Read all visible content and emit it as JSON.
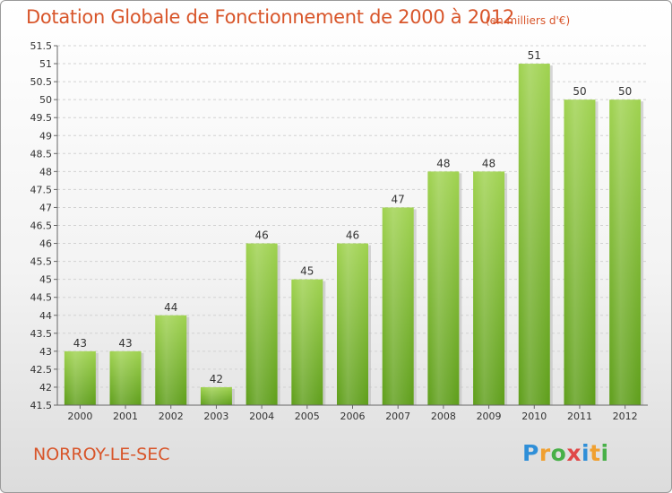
{
  "chart_data": {
    "type": "bar",
    "title": "Dotation Globale de Fonctionnement de 2000 à 2012",
    "subtitle": "(en milliers d'€)",
    "categories": [
      "2000",
      "2001",
      "2002",
      "2003",
      "2004",
      "2005",
      "2006",
      "2007",
      "2008",
      "2009",
      "2010",
      "2011",
      "2012"
    ],
    "values": [
      43,
      43,
      44,
      42,
      46,
      45,
      46,
      47,
      48,
      48,
      51,
      50,
      50
    ],
    "ylim": [
      41.5,
      51.5
    ],
    "yticks": [
      "41.5",
      "42",
      "42.5",
      "43",
      "43.5",
      "44",
      "44.5",
      "45",
      "45.5",
      "46",
      "46.5",
      "47",
      "47.5",
      "48",
      "48.5",
      "49",
      "49.5",
      "50",
      "50.5",
      "51",
      "51.5"
    ],
    "grid": true,
    "bar_color": "#7cb82f",
    "xlabel": "",
    "ylabel": ""
  },
  "commune": "NORROY-LE-SEC",
  "logo": {
    "letters": [
      "P",
      "r",
      "o",
      "x",
      "i",
      "t",
      "i"
    ],
    "colors": [
      "#2f8fd8",
      "#f0a030",
      "#48b048",
      "#e04848",
      "#2f8fd8",
      "#f0a030",
      "#48b048"
    ]
  }
}
